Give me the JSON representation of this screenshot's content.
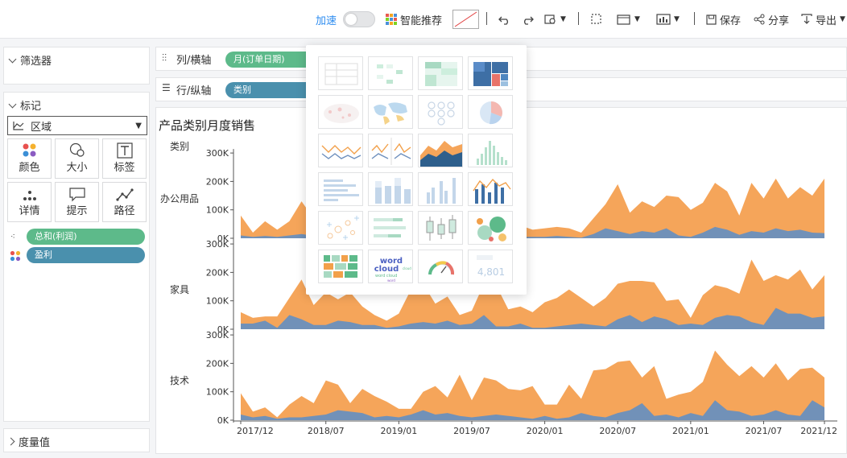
{
  "toolbar": {
    "accelerate_label": "加速",
    "smart_label": "智能推荐",
    "save_label": "保存",
    "share_label": "分享",
    "export_label": "导出"
  },
  "left": {
    "filter_title": "筛选器",
    "marks_title": "标记",
    "mark_type": "区域",
    "buttons": [
      "颜色",
      "大小",
      "标签",
      "详情",
      "提示",
      "路径"
    ],
    "fields": [
      {
        "label": "总和(利润)",
        "color": "#5dba8a"
      },
      {
        "label": "盈利",
        "color": "#4a90ad"
      }
    ],
    "measure_title": "度量值"
  },
  "shelves": {
    "columns_label": "列/横轴",
    "columns_pill": "月(订单日期)",
    "rows_label": "行/纵轴",
    "rows_pill": "类别"
  },
  "chart": {
    "title": "产品类别月度销售",
    "category_header": "类别"
  },
  "popup": {
    "number_card_text": "4,801",
    "wordcloud_text": "word cloud"
  },
  "chart_data": {
    "type": "area",
    "title": "产品类别月度销售",
    "xlabel": "",
    "ylabel": "",
    "ylim": [
      0,
      300000
    ],
    "y_ticks": [
      "0K",
      "100K",
      "200K",
      "300K"
    ],
    "x_tick_labels": [
      "2017/12",
      "2018/07",
      "2019/01",
      "2019/07",
      "2020/01",
      "2020/07",
      "2021/01",
      "2021/07",
      "2021/12"
    ],
    "x_tick_index": [
      0,
      7,
      13,
      19,
      25,
      31,
      37,
      43,
      48
    ],
    "colors": {
      "orange": "#f5a55a",
      "blue": "#7191b8"
    },
    "panels": [
      {
        "category": "办公用品",
        "orange": [
          80,
          20,
          60,
          30,
          60,
          130,
          70,
          95,
          80,
          60,
          40,
          60,
          35,
          50,
          95,
          70,
          130,
          105,
          75,
          30,
          120,
          95,
          55,
          45,
          30,
          35,
          40,
          35,
          20,
          70,
          120,
          190,
          90,
          130,
          110,
          150,
          145,
          100,
          125,
          195,
          165,
          80,
          195,
          140,
          210,
          140,
          180,
          150,
          210
        ],
        "blue": [
          10,
          5,
          8,
          5,
          10,
          15,
          8,
          10,
          8,
          5,
          5,
          8,
          5,
          5,
          10,
          8,
          15,
          12,
          10,
          5,
          15,
          10,
          8,
          5,
          5,
          5,
          8,
          5,
          2,
          15,
          35,
          25,
          15,
          25,
          20,
          35,
          10,
          5,
          20,
          40,
          30,
          12,
          25,
          20,
          35,
          25,
          30,
          20,
          18
        ]
      },
      {
        "category": "家具",
        "orange": [
          60,
          40,
          45,
          45,
          110,
          175,
          85,
          130,
          105,
          130,
          80,
          50,
          30,
          55,
          140,
          160,
          90,
          115,
          50,
          65,
          160,
          155,
          70,
          80,
          60,
          95,
          110,
          140,
          110,
          80,
          110,
          160,
          170,
          170,
          165,
          100,
          105,
          40,
          120,
          155,
          145,
          125,
          245,
          170,
          190,
          175,
          210,
          140,
          190
        ],
        "blue": [
          20,
          20,
          30,
          5,
          50,
          35,
          15,
          15,
          30,
          25,
          15,
          15,
          5,
          10,
          20,
          25,
          20,
          30,
          15,
          20,
          50,
          10,
          10,
          20,
          5,
          5,
          10,
          15,
          20,
          15,
          10,
          35,
          50,
          25,
          45,
          35,
          15,
          20,
          15,
          40,
          50,
          45,
          25,
          15,
          75,
          55,
          55,
          40,
          45
        ]
      },
      {
        "category": "技术",
        "orange": [
          95,
          30,
          45,
          10,
          55,
          85,
          60,
          140,
          125,
          60,
          110,
          85,
          65,
          40,
          40,
          100,
          120,
          80,
          160,
          70,
          150,
          140,
          110,
          105,
          120,
          55,
          55,
          125,
          75,
          175,
          180,
          205,
          210,
          150,
          190,
          75,
          90,
          100,
          135,
          245,
          195,
          155,
          190,
          150,
          200,
          140,
          180,
          185,
          150
        ],
        "blue": [
          20,
          10,
          15,
          5,
          10,
          10,
          15,
          20,
          35,
          30,
          25,
          10,
          15,
          10,
          20,
          35,
          20,
          25,
          15,
          10,
          15,
          20,
          15,
          10,
          5,
          15,
          5,
          10,
          25,
          15,
          10,
          25,
          35,
          60,
          15,
          20,
          10,
          25,
          15,
          70,
          35,
          30,
          15,
          20,
          35,
          20,
          15,
          70,
          45
        ]
      }
    ]
  }
}
